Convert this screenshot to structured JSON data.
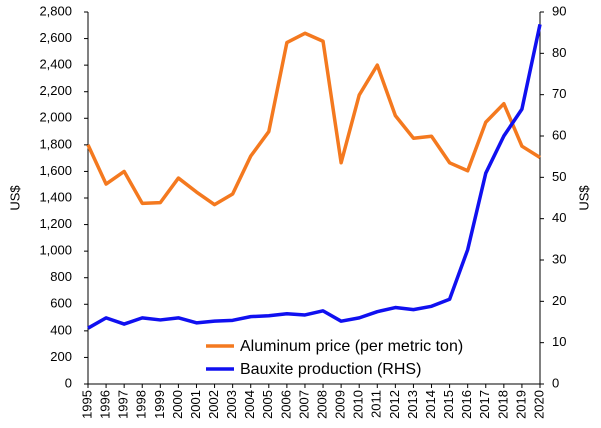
{
  "chart_data": {
    "type": "line",
    "ylabel": "US$",
    "y2label": "US$",
    "categories": [
      "1995",
      "1996",
      "1997",
      "1998",
      "1999",
      "2000",
      "2001",
      "2002",
      "2003",
      "2004",
      "2005",
      "2006",
      "2007",
      "2008",
      "2009",
      "2010",
      "2011",
      "2012",
      "2013",
      "2014",
      "2015",
      "2016",
      "2017",
      "2018",
      "2019",
      "2020"
    ],
    "series": [
      {
        "name": "Aluminum price (per metric ton)",
        "color": "#f4791f",
        "axis": "y",
        "values": [
          1800,
          1505,
          1600,
          1360,
          1365,
          1550,
          1445,
          1350,
          1430,
          1715,
          1900,
          2570,
          2640,
          2580,
          1665,
          2175,
          2400,
          2020,
          1850,
          1865,
          1665,
          1605,
          1970,
          2110,
          1790,
          1705
        ]
      },
      {
        "name": "Bauxite production (RHS)",
        "color": "#1010f0",
        "axis": "y2",
        "values": [
          13.5,
          16,
          14.5,
          16,
          15.5,
          16,
          14.8,
          15.2,
          15.4,
          16.3,
          16.5,
          17,
          16.7,
          17.7,
          15.2,
          16,
          17.5,
          18.5,
          18,
          18.8,
          20.5,
          32.5,
          51,
          60,
          66.5,
          87
        ]
      }
    ],
    "ylim": [
      0,
      2800
    ],
    "yticks": [
      0,
      200,
      400,
      600,
      800,
      {
        "value": 1000,
        "label": "1,000"
      },
      {
        "value": 1200,
        "label": "1,200"
      },
      {
        "value": 1400,
        "label": "1,400"
      },
      {
        "value": 1600,
        "label": "1,600"
      },
      {
        "value": 1800,
        "label": "1,800"
      },
      {
        "value": 2000,
        "label": "2,000"
      },
      {
        "value": 2200,
        "label": "2,200"
      },
      {
        "value": 2400,
        "label": "2,400"
      },
      {
        "value": 2600,
        "label": "2,600"
      },
      {
        "value": 2800,
        "label": "2,800"
      }
    ],
    "y2lim": [
      0,
      90
    ],
    "y2ticks": [
      0,
      10,
      20,
      30,
      40,
      50,
      60,
      70,
      80,
      90
    ],
    "legend": "lower right"
  }
}
